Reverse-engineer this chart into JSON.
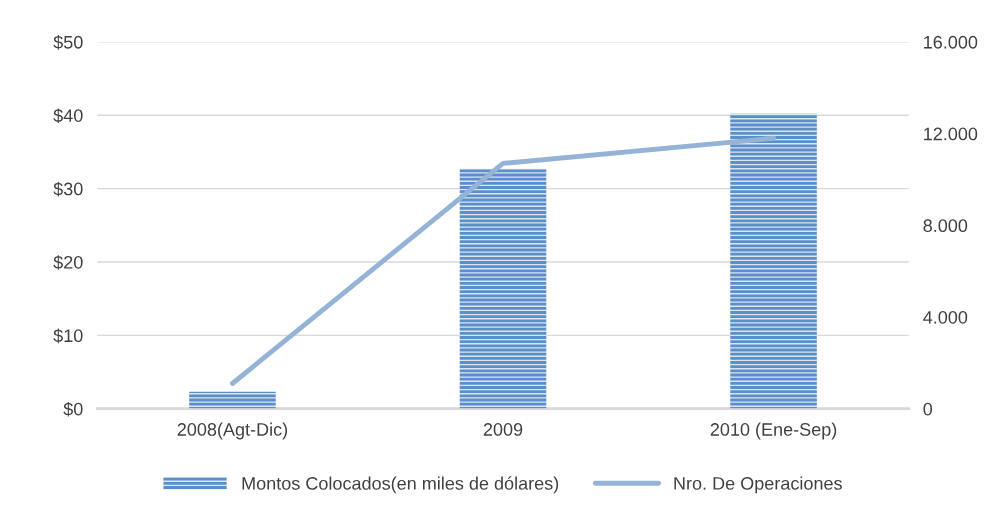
{
  "chart_data": {
    "type": "bar",
    "categories": [
      "2008(Agt-Dic)",
      "2009",
      "2010 (Ene-Sep)"
    ],
    "series": [
      {
        "name": "Montos Colocados(en miles de dólares)",
        "color": "#5b8fc9",
        "values": [
          2.3,
          32.7,
          40.2
        ]
      },
      {
        "name": "Nro. De Operaciones",
        "type": "line",
        "axis": "y2",
        "color": "#95b3d7",
        "values": [
          1100,
          10700,
          11800
        ]
      }
    ],
    "ylim": [
      0,
      50
    ],
    "yticks": [
      {
        "value": 0,
        "label": "$0"
      },
      {
        "value": 10,
        "label": "$10"
      },
      {
        "value": 20,
        "label": "$20"
      },
      {
        "value": 30,
        "label": "$30"
      },
      {
        "value": 40,
        "label": "$40"
      },
      {
        "value": 50,
        "label": "$50"
      }
    ],
    "y2lim": [
      0,
      16000
    ],
    "y2ticks": [
      {
        "value": 0,
        "label": "0"
      },
      {
        "value": 4000,
        "label": "4.000"
      },
      {
        "value": 8000,
        "label": "8.000"
      },
      {
        "value": 12000,
        "label": "12.000"
      },
      {
        "value": 16000,
        "label": "16.000"
      }
    ],
    "grid": "y",
    "legend": "bottom"
  }
}
